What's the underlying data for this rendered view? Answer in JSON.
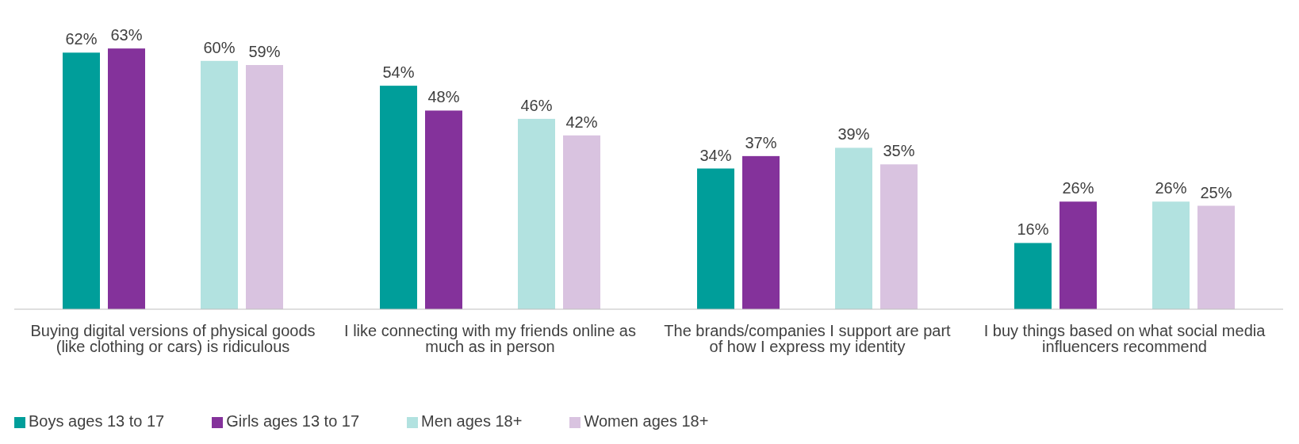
{
  "chart_data": {
    "type": "bar",
    "categories": [
      "Buying digital versions of physical goods (like clothing or cars) is ridiculous",
      "I like connecting with my friends online as much as in person",
      "The brands/companies I support are part of how I express my identity",
      "I buy things based on what social media influencers recommend"
    ],
    "series": [
      {
        "name": "Boys ages 13 to 17",
        "color": "#009e9a",
        "values": [
          62,
          54,
          34,
          16
        ],
        "value_labels": [
          "62%",
          "54%",
          "34%",
          "16%"
        ]
      },
      {
        "name": "Girls ages 13 to 17",
        "color": "#84329b",
        "values": [
          63,
          48,
          37,
          26
        ],
        "value_labels": [
          "63%",
          "48%",
          "37%",
          "26%"
        ]
      },
      {
        "name": "Men ages 18+",
        "color": "#b2e2e0",
        "values": [
          60,
          46,
          39,
          26
        ],
        "value_labels": [
          "60%",
          "46%",
          "39%",
          "26%"
        ]
      },
      {
        "name": "Women ages 18+",
        "color": "#d9c3e0",
        "values": [
          59,
          42,
          35,
          25
        ],
        "value_labels": [
          "59%",
          "42%",
          "35%",
          "25%"
        ]
      }
    ],
    "legend": "bottom left",
    "grid": false
  }
}
